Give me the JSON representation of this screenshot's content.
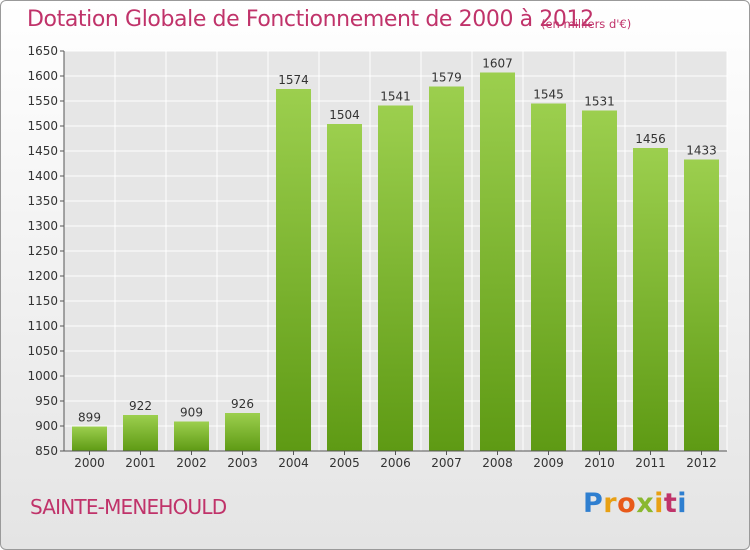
{
  "chart_data": {
    "type": "bar",
    "title": "Dotation Globale de Fonctionnement de 2000 à 2012",
    "subtitle": "(en milliers d'€)",
    "categories": [
      "2000",
      "2001",
      "2002",
      "2003",
      "2004",
      "2005",
      "2006",
      "2007",
      "2008",
      "2009",
      "2010",
      "2011",
      "2012"
    ],
    "values": [
      899,
      922,
      909,
      926,
      1574,
      1504,
      1541,
      1579,
      1607,
      1545,
      1531,
      1456,
      1433
    ],
    "ylim": [
      850,
      1650
    ],
    "yticks": [
      850,
      900,
      950,
      1000,
      1050,
      1100,
      1150,
      1200,
      1250,
      1300,
      1350,
      1400,
      1450,
      1500,
      1550,
      1600,
      1650
    ],
    "grid": true,
    "bar_color_top": "#9ccf4e",
    "bar_color_bottom": "#5e9a14"
  },
  "footer": {
    "commune": "SAINTE-MENEHOULD",
    "logo": "Proxiti"
  },
  "colors": {
    "accent": "#c0336a"
  }
}
